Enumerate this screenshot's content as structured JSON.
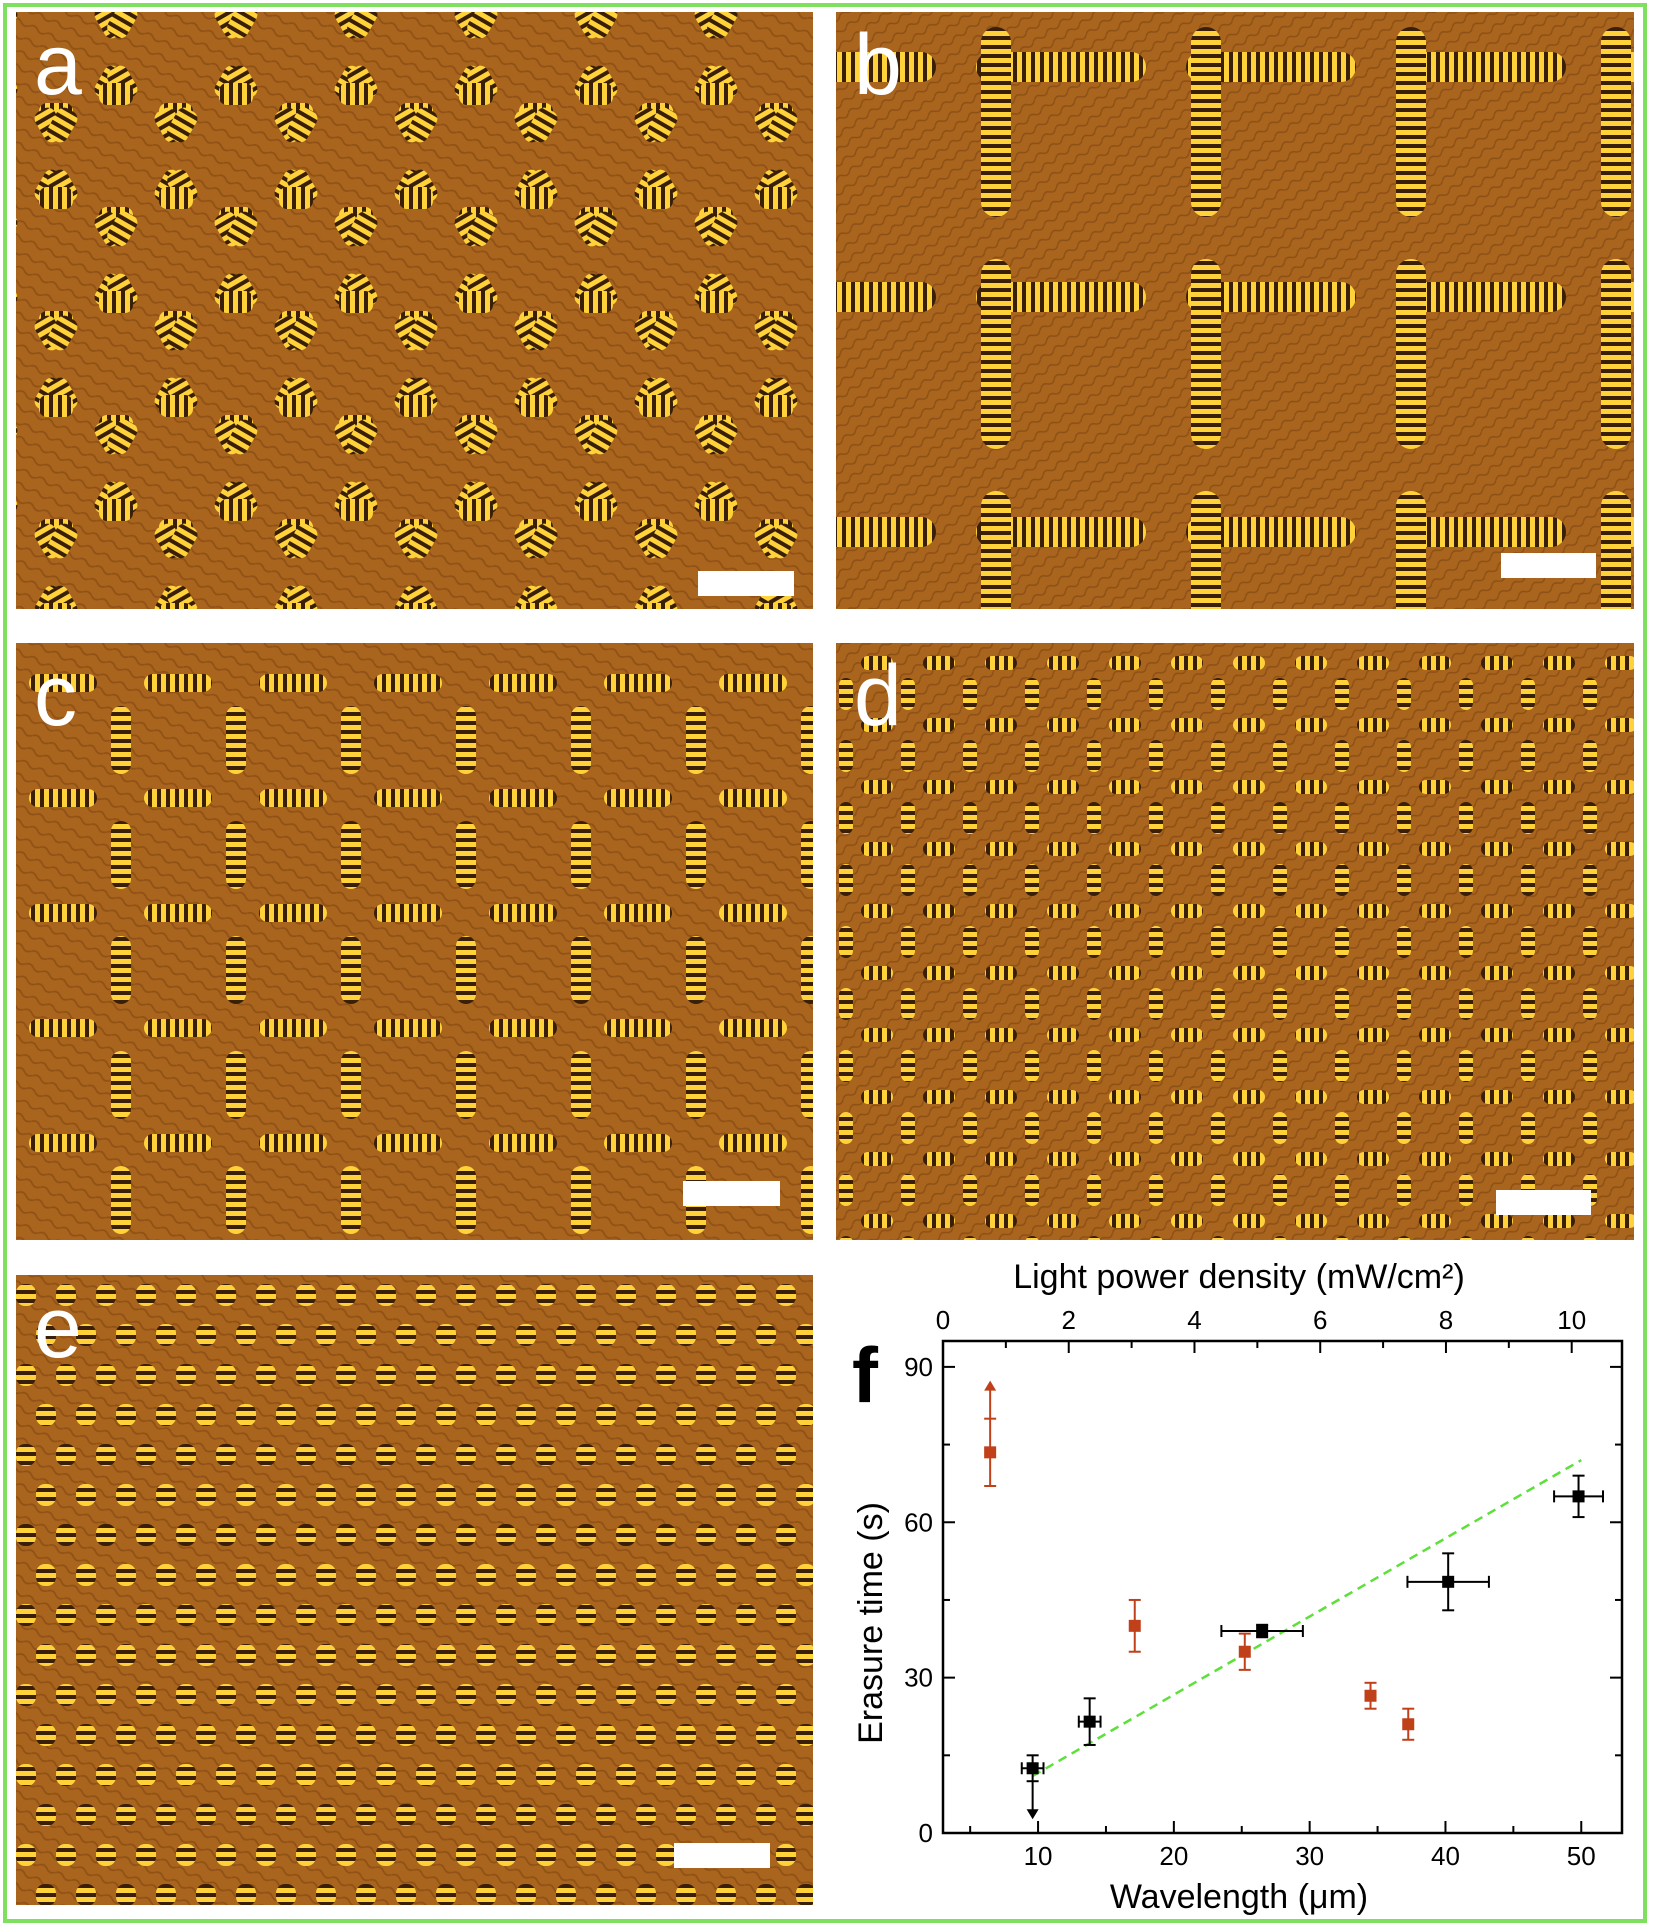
{
  "panels": [
    {
      "letter": "a",
      "pattern": "hexagonal-domain-network"
    },
    {
      "letter": "b",
      "pattern": "large-square-domain-network"
    },
    {
      "letter": "c",
      "pattern": "medium-square-domain-network"
    },
    {
      "letter": "d",
      "pattern": "small-square-domain-network"
    },
    {
      "letter": "e",
      "pattern": "dense-dot-lattice"
    }
  ],
  "colors": {
    "frame": "#7fe060",
    "micro_background": "#a9641d",
    "stripe_bright": "#ffd23a",
    "stripe_dark": "#3a1f08",
    "black_series": "#000000",
    "red_series": "#c0401a",
    "fit_line": "#5ee03a"
  },
  "chart_data": {
    "type": "scatter",
    "panel_letter": "f",
    "xlabel": "Wavelength (μm)",
    "x2label": "Light power density (mW/cm²)",
    "ylabel": "Erasure time (s)",
    "xlim": [
      3,
      53
    ],
    "x2lim": [
      0,
      10.8
    ],
    "ylim": [
      0,
      95
    ],
    "xticks": [
      10,
      20,
      30,
      40,
      50
    ],
    "x2ticks": [
      0,
      2,
      4,
      6,
      8,
      10
    ],
    "yticks": [
      0,
      30,
      60,
      90
    ],
    "series": [
      {
        "axis": "bottom",
        "color": "#000000",
        "points": [
          {
            "x": 9.6,
            "y": 12.5,
            "xerr": 0.8,
            "yerr": 2.5,
            "arrow": "down"
          },
          {
            "x": 13.8,
            "y": 21.5,
            "xerr": 0.8,
            "yerr": 4.5
          },
          {
            "x": 26.5,
            "y": 39,
            "xerr": 3,
            "yerr": 1.2
          },
          {
            "x": 40.2,
            "y": 48.5,
            "xerr": 3,
            "yerr": 5.5
          },
          {
            "x": 49.8,
            "y": 65,
            "xerr": 1.8,
            "yerr": 4
          }
        ]
      },
      {
        "axis": "top",
        "color": "#c0401a",
        "points": [
          {
            "x": 0.75,
            "y": 73.5,
            "yerr": 6.5,
            "arrow": "up"
          },
          {
            "x": 3.05,
            "y": 40,
            "yerr": 5
          },
          {
            "x": 4.8,
            "y": 35,
            "yerr": 3.5
          },
          {
            "x": 6.8,
            "y": 26.5,
            "yerr": 2.5
          },
          {
            "x": 7.4,
            "y": 21,
            "yerr": 3
          }
        ]
      }
    ],
    "fit_line": {
      "x": [
        9.6,
        50
      ],
      "y": [
        11,
        72
      ]
    }
  }
}
